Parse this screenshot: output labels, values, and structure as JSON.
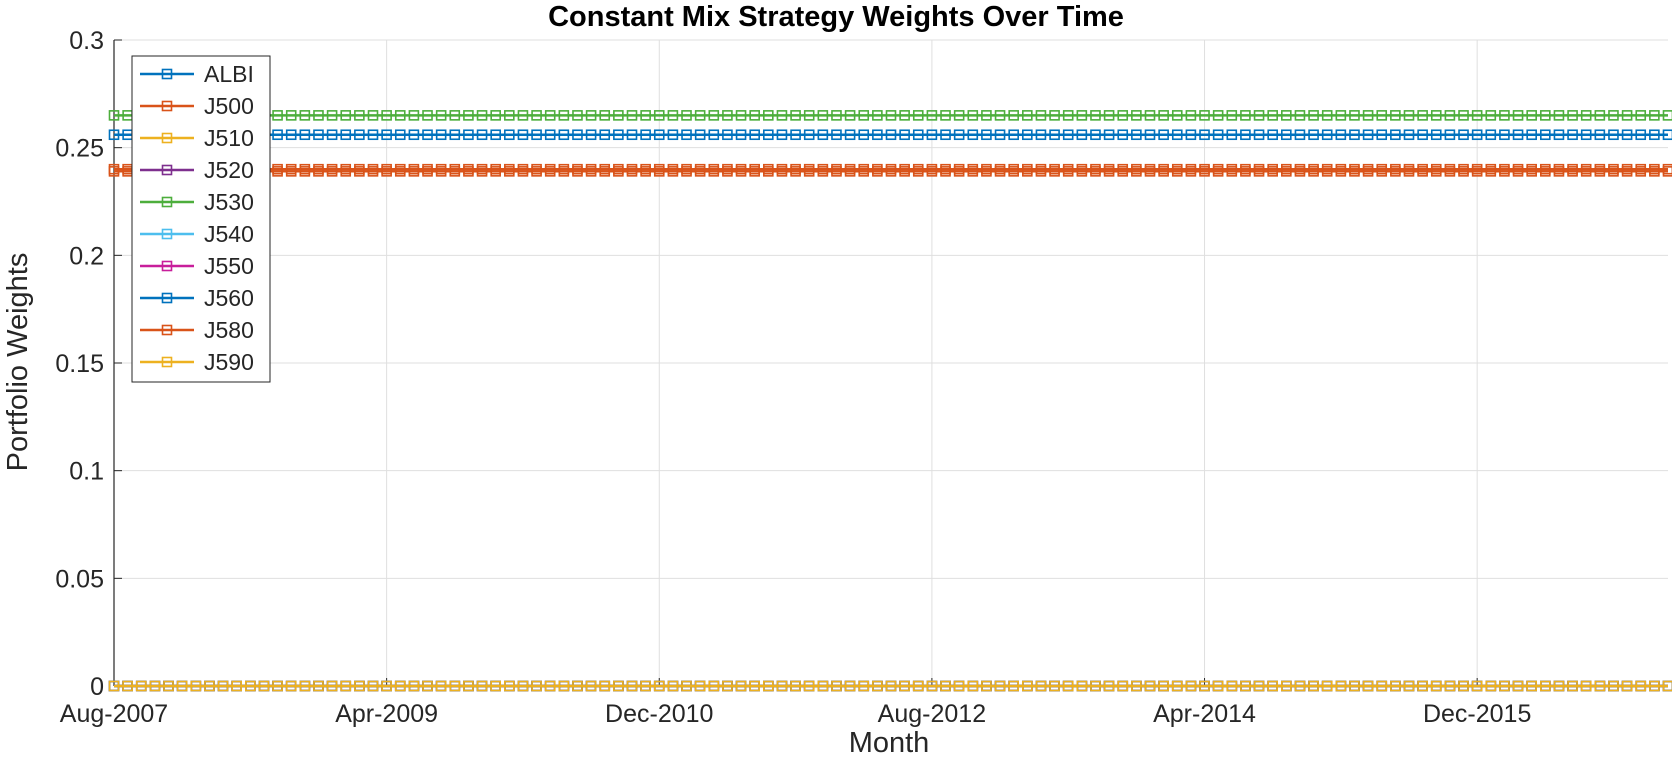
{
  "chart_data": {
    "type": "line",
    "title": "Constant Mix Strategy Weights Over Time",
    "xlabel": "Month",
    "ylabel": "Portfolio Weights",
    "x_ticks": [
      "Aug-2007",
      "Apr-2009",
      "Dec-2010",
      "Aug-2012",
      "Apr-2014",
      "Dec-2015"
    ],
    "x_range": [
      "Aug-2007",
      "Dec-2016"
    ],
    "month_count": 114,
    "ylim": [
      0,
      0.3
    ],
    "y_ticks": [
      "0",
      "0.05",
      "0.1",
      "0.15",
      "0.2",
      "0.25",
      "0.3"
    ],
    "y_tick_values": [
      0,
      0.05,
      0.1,
      0.15,
      0.2,
      0.25,
      0.3
    ],
    "grid": true,
    "legend_position": "top-left",
    "marker": "square",
    "series": [
      {
        "name": "ALBI",
        "color": "#0072BD",
        "value": 0.256
      },
      {
        "name": "J500",
        "color": "#D95319",
        "value": 0.239
      },
      {
        "name": "J510",
        "color": "#EDB120",
        "value": 0.0
      },
      {
        "name": "J520",
        "color": "#7E2F8E",
        "value": 0.0
      },
      {
        "name": "J530",
        "color": "#4DAE3C",
        "value": 0.265
      },
      {
        "name": "J540",
        "color": "#4DBEEE",
        "value": 0.0
      },
      {
        "name": "J550",
        "color": "#C81E9B",
        "value": 0.0
      },
      {
        "name": "J560",
        "color": "#0072BD",
        "value": 0.0
      },
      {
        "name": "J580",
        "color": "#D95319",
        "value": 0.24
      },
      {
        "name": "J590",
        "color": "#EDB120",
        "value": 0.0
      }
    ]
  }
}
